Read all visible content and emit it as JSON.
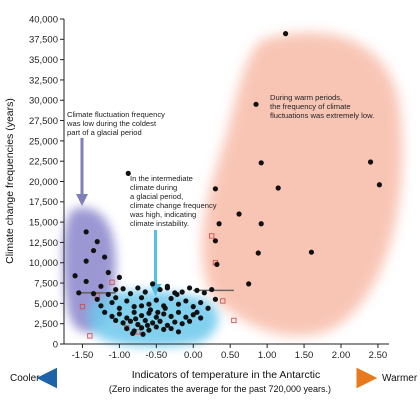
{
  "chart_data": {
    "type": "scatter",
    "title": "",
    "xlabel": "Indicators of temperature in the Antarctic",
    "ylabel": "Climate change frequencies (years)",
    "xlim": [
      -1.75,
      2.65
    ],
    "ylim": [
      0,
      40000
    ],
    "x_ticks": [
      -1.5,
      -1.0,
      -0.5,
      0.0,
      0.5,
      1.0,
      1.5,
      2.0,
      2.5
    ],
    "x_tick_labels": [
      "-1.50",
      "-1.00",
      "-0.50",
      "0.00",
      "0.50",
      "1.00",
      "1.50",
      "2.00",
      "2.50"
    ],
    "y_ticks": [
      0,
      2500,
      5000,
      7500,
      10000,
      12500,
      15000,
      17500,
      20000,
      22500,
      25000,
      27500,
      30000,
      32500,
      35000,
      37500,
      40000
    ],
    "y_tick_labels": [
      "0",
      "2,500",
      "5,000",
      "7,500",
      "10,000",
      "12,500",
      "15,000",
      "17,500",
      "20,000",
      "22,500",
      "25,000",
      "27,500",
      "30,000",
      "32,500",
      "35,000",
      "37,500",
      "40,000"
    ],
    "grid": false,
    "legend": "none",
    "colors": {
      "points": "#111111",
      "open_squares": "#d05050",
      "cold_region": "#8a85cc",
      "intermediate_region": "#6cc8ec",
      "warm_region": "#f7b7a3",
      "cold_arrow": "#8080b8",
      "intermediate_arrow": "#56bfe6",
      "cooler_arrow": "#1d63a8",
      "warmer_arrow": "#e8791c"
    },
    "series": [
      {
        "marker": "filled-circle",
        "points": [
          [
            1.25,
            38200
          ],
          [
            0.85,
            29500
          ],
          [
            2.4,
            22400
          ],
          [
            0.92,
            22300
          ],
          [
            1.15,
            19200
          ],
          [
            2.52,
            19600
          ],
          [
            -0.88,
            21000
          ],
          [
            0.3,
            19100
          ],
          [
            0.62,
            16000
          ],
          [
            0.35,
            14800
          ],
          [
            0.92,
            14800
          ],
          [
            0.3,
            12700
          ],
          [
            0.88,
            11200
          ],
          [
            1.6,
            11300
          ],
          [
            -1.3,
            12600
          ],
          [
            -1.45,
            13800
          ],
          [
            -1.35,
            11500
          ],
          [
            -1.2,
            10700
          ],
          [
            -1.45,
            10200
          ],
          [
            -1.6,
            8400
          ],
          [
            0.75,
            7400
          ],
          [
            0.32,
            9800
          ],
          [
            -1.15,
            8800
          ],
          [
            -1.0,
            8200
          ],
          [
            -1.45,
            7700
          ],
          [
            -1.25,
            7100
          ],
          [
            -1.35,
            6200
          ],
          [
            -1.55,
            6300
          ],
          [
            -1.15,
            6100
          ],
          [
            -1.05,
            6700
          ],
          [
            -0.95,
            6800
          ],
          [
            -0.85,
            6200
          ],
          [
            -0.75,
            6900
          ],
          [
            -0.65,
            6400
          ],
          [
            -0.55,
            7400
          ],
          [
            -0.45,
            6700
          ],
          [
            -0.35,
            6900
          ],
          [
            -0.25,
            6300
          ],
          [
            -0.15,
            6400
          ],
          [
            -0.05,
            6900
          ],
          [
            0.05,
            6600
          ],
          [
            0.15,
            6300
          ],
          [
            0.25,
            6700
          ],
          [
            -1.3,
            5500
          ],
          [
            -1.25,
            4700
          ],
          [
            -1.1,
            5100
          ],
          [
            -1.0,
            4400
          ],
          [
            -0.9,
            5300
          ],
          [
            -0.8,
            4600
          ],
          [
            -0.7,
            5700
          ],
          [
            -0.6,
            4900
          ],
          [
            -0.5,
            5400
          ],
          [
            -0.4,
            4700
          ],
          [
            -0.3,
            5600
          ],
          [
            -0.2,
            4900
          ],
          [
            -0.1,
            5300
          ],
          [
            0.0,
            4600
          ],
          [
            0.1,
            5100
          ],
          [
            0.2,
            4400
          ],
          [
            0.3,
            5500
          ],
          [
            -1.2,
            3900
          ],
          [
            -1.1,
            3400
          ],
          [
            -1.0,
            3700
          ],
          [
            -0.9,
            3200
          ],
          [
            -0.8,
            3900
          ],
          [
            -0.7,
            3500
          ],
          [
            -0.6,
            3800
          ],
          [
            -0.5,
            3300
          ],
          [
            -0.4,
            3700
          ],
          [
            -0.3,
            3400
          ],
          [
            -0.2,
            3900
          ],
          [
            -0.1,
            3300
          ],
          [
            0.0,
            3600
          ],
          [
            0.1,
            3200
          ],
          [
            -1.05,
            2900
          ],
          [
            -0.95,
            2600
          ],
          [
            -0.85,
            2800
          ],
          [
            -0.75,
            2400
          ],
          [
            -0.65,
            2900
          ],
          [
            -0.55,
            2600
          ],
          [
            -0.45,
            2800
          ],
          [
            -0.35,
            2300
          ],
          [
            -0.25,
            2700
          ],
          [
            -0.15,
            2500
          ],
          [
            -0.05,
            2800
          ],
          [
            -0.9,
            1900
          ],
          [
            -0.8,
            1600
          ],
          [
            -0.7,
            2000
          ],
          [
            -0.6,
            1700
          ],
          [
            -0.5,
            2100
          ],
          [
            -0.4,
            1800
          ],
          [
            -0.3,
            1900
          ],
          [
            -0.2,
            1500
          ],
          [
            -0.82,
            1300
          ],
          [
            -0.68,
            1200
          ],
          [
            -0.62,
            2300
          ],
          [
            -0.78,
            3100
          ],
          [
            -0.48,
            3900
          ],
          [
            -0.58,
            4200
          ],
          [
            -0.38,
            4400
          ],
          [
            -0.7,
            4700
          ],
          [
            -0.22,
            6100
          ],
          [
            0.05,
            3900
          ],
          [
            -0.35,
            7100
          ],
          [
            -1.05,
            5700
          ]
        ]
      },
      {
        "marker": "open-square",
        "points": [
          [
            0.25,
            13300
          ],
          [
            0.3,
            10000
          ],
          [
            -1.1,
            7600
          ],
          [
            0.4,
            5300
          ],
          [
            -1.5,
            4600
          ],
          [
            0.55,
            2900
          ],
          [
            -1.4,
            1000
          ],
          [
            -0.9,
            2000
          ],
          [
            -0.75,
            1500
          ],
          [
            -1.3,
            5900
          ]
        ]
      }
    ],
    "reference_lines": [
      {
        "x": [
          -1.55,
          -1.05
        ],
        "y": 6300
      },
      {
        "x": [
          0.0,
          0.55
        ],
        "y": 6600
      }
    ],
    "annotations": {
      "cold": [
        "Climate fluctuation frequency",
        "was low during the coldest",
        "part of a glacial period"
      ],
      "intermediate": [
        "In the intermediate",
        "climate during",
        "a glacial period,",
        "climate change frequency",
        "was high, indicating",
        "climate instability."
      ],
      "warm": [
        "During warm periods,",
        "the frequency of climate",
        "fluctuations was extremely low."
      ]
    },
    "bottom": {
      "cooler": "Cooler",
      "warmer": "Warmer",
      "note": "(Zero indicates the average for the past 720,000 years.)"
    }
  }
}
